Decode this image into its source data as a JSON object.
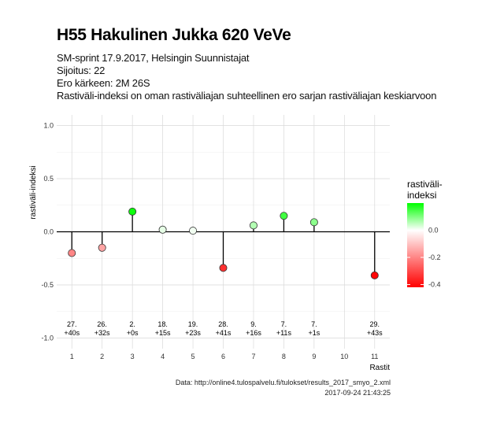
{
  "header": {
    "title": "H55 Hakulinen Jukka 620 VeVe",
    "subtitle_lines": [
      "SM-sprint 17.9.2017, Helsingin Suunnistajat",
      "Sijoitus: 22",
      "Ero kärkeen: 2M 26S",
      "Rastiväli-indeksi on oman rastiväliajan suhteellinen ero sarjan rastiväliajan keskiarvoon"
    ]
  },
  "footer": {
    "source": "Data: http://online4.tulospalvelu.fi/tulokset/results_2017_smyo_2.xml",
    "timestamp": "2017-09-24 21:43:25"
  },
  "chart_data": {
    "type": "scatter",
    "style": "lollipop",
    "xlabel": "Rastit",
    "ylabel": "rastiväli-indeksi",
    "x_ticks": [
      1,
      2,
      3,
      4,
      5,
      6,
      7,
      8,
      9,
      10,
      11
    ],
    "xlim": [
      0.5,
      11.5
    ],
    "ylim": [
      -1.0,
      1.0
    ],
    "y_ticks": [
      -1.0,
      -0.5,
      0.0,
      0.5,
      1.0
    ],
    "y_tick_labels": [
      "-1.0",
      "-0.5",
      "0.0",
      "0.5",
      "1.0"
    ],
    "grid": true,
    "points": [
      {
        "x": 1,
        "y": -0.2,
        "label_rank": "27.",
        "label_diff": "+40s"
      },
      {
        "x": 2,
        "y": -0.15,
        "label_rank": "26.",
        "label_diff": "+32s"
      },
      {
        "x": 3,
        "y": 0.19,
        "label_rank": "2.",
        "label_diff": "+0s"
      },
      {
        "x": 4,
        "y": 0.02,
        "label_rank": "18.",
        "label_diff": "+15s"
      },
      {
        "x": 5,
        "y": 0.01,
        "label_rank": "19.",
        "label_diff": "+23s"
      },
      {
        "x": 6,
        "y": -0.34,
        "label_rank": "28.",
        "label_diff": "+41s"
      },
      {
        "x": 7,
        "y": 0.06,
        "label_rank": "9.",
        "label_diff": "+16s"
      },
      {
        "x": 8,
        "y": 0.15,
        "label_rank": "7.",
        "label_diff": "+11s"
      },
      {
        "x": 9,
        "y": 0.09,
        "label_rank": "7.",
        "label_diff": "+1s"
      },
      {
        "x": 11,
        "y": -0.41,
        "label_rank": "29.",
        "label_diff": "+43s"
      }
    ],
    "legend": {
      "title_lines": [
        "rastiväli-",
        "indeksi"
      ],
      "position": "right",
      "breaks": [
        0.0,
        -0.2,
        -0.4
      ],
      "break_labels": [
        "0.0",
        "-0.2",
        "-0.4"
      ],
      "range": [
        -0.42,
        0.2
      ]
    },
    "colors": {
      "high": "#00ff00",
      "mid": "#ffffff",
      "low": "#ff0000",
      "panel_grid_major": "#d9d9d9",
      "panel_grid_minor": "#ececec",
      "zero_line": "#000000"
    }
  }
}
